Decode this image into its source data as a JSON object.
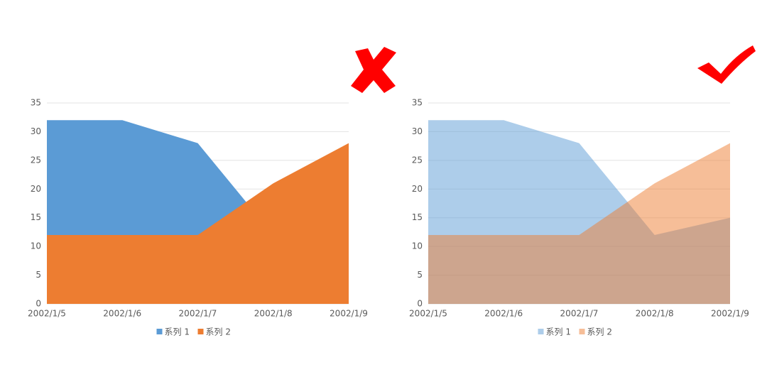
{
  "chart_data": [
    {
      "type": "area",
      "x": [
        "2002/1/5",
        "2002/1/6",
        "2002/1/7",
        "2002/1/8",
        "2002/1/9"
      ],
      "series": [
        {
          "name": "系列 1",
          "color": "#5b9bd5",
          "values": [
            32,
            32,
            28,
            12,
            15
          ]
        },
        {
          "name": "系列 2",
          "color": "#ed7d31",
          "values": [
            12,
            12,
            12,
            21,
            28
          ]
        }
      ],
      "fill_opacity": 1,
      "ylim": [
        0,
        35
      ],
      "yticks": [
        0,
        5,
        10,
        15,
        20,
        25,
        30,
        35
      ],
      "grid": true,
      "legend": "bottom"
    },
    {
      "type": "area",
      "x": [
        "2002/1/5",
        "2002/1/6",
        "2002/1/7",
        "2002/1/8",
        "2002/1/9"
      ],
      "series": [
        {
          "name": "系列 1",
          "color": "#5b9bd5",
          "values": [
            32,
            32,
            28,
            12,
            15
          ]
        },
        {
          "name": "系列 2",
          "color": "#ed7d31",
          "values": [
            12,
            12,
            12,
            21,
            28
          ]
        }
      ],
      "fill_opacity": 0.5,
      "ylim": [
        0,
        35
      ],
      "yticks": [
        0,
        5,
        10,
        15,
        20,
        25,
        30,
        35
      ],
      "grid": true,
      "legend": "bottom"
    }
  ]
}
